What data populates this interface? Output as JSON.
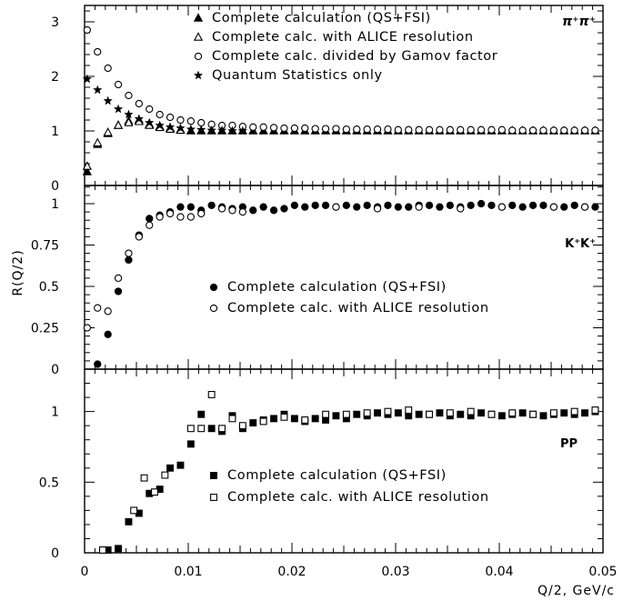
{
  "chart_data": {
    "type": "scatter",
    "xlabel": "Q/2, GeV/c",
    "ylabel": "R(Q/2)",
    "xlim": [
      0,
      0.05
    ],
    "x_ticks": [
      "0",
      "0.01",
      "0.02",
      "0.03",
      "0.04",
      "0.05"
    ],
    "x_tick_values": [
      0,
      0.01,
      0.02,
      0.03,
      0.04,
      0.05
    ],
    "panels": [
      {
        "label": "π⁺π⁺",
        "ylim": [
          0,
          3.3
        ],
        "y_ticks": [
          "0",
          "1",
          "2",
          "3"
        ],
        "y_tick_values": [
          0,
          1,
          2,
          3
        ],
        "legend_position": "top",
        "series": [
          {
            "name": "Complete calculation (QS+FSI)",
            "marker": "filled-triangle",
            "x": [
              0.00025,
              0.00125,
              0.00225,
              0.00325,
              0.00425,
              0.00525,
              0.00625,
              0.00725,
              0.00825,
              0.00925,
              0.01025,
              0.01125,
              0.01225,
              0.01325,
              0.01425,
              0.01525,
              0.01625,
              0.01725,
              0.01825,
              0.01925,
              0.02025,
              0.02125,
              0.02225,
              0.02325,
              0.02425,
              0.02525,
              0.02625,
              0.02725,
              0.02825,
              0.02925,
              0.03025,
              0.03125,
              0.03225,
              0.03325,
              0.03425,
              0.03525,
              0.03625,
              0.03725,
              0.03825,
              0.03925,
              0.04025,
              0.04125,
              0.04225,
              0.04325,
              0.04425,
              0.04525,
              0.04625,
              0.04725,
              0.04825,
              0.04925
            ],
            "y": [
              0.25,
              0.75,
              0.95,
              1.1,
              1.18,
              1.2,
              1.12,
              1.08,
              1.05,
              1.02,
              1.0,
              1.0,
              1.0,
              1.0,
              1.0,
              1.0,
              1.0,
              1.0,
              1.0,
              1.0,
              1.0,
              1.0,
              1.0,
              1.0,
              1.0,
              1.0,
              1.0,
              1.0,
              1.0,
              1.0,
              1.0,
              1.0,
              1.0,
              1.0,
              1.0,
              1.0,
              1.0,
              1.0,
              1.0,
              1.0,
              1.0,
              1.0,
              1.0,
              1.0,
              1.0,
              1.0,
              1.0,
              1.0,
              1.0,
              1.0
            ]
          },
          {
            "name": "Complete calc. with ALICE resolution",
            "marker": "open-triangle",
            "x": [
              0.00025,
              0.00125,
              0.00225,
              0.00325,
              0.00425,
              0.00525,
              0.00625,
              0.00725,
              0.00825,
              0.00925
            ],
            "y": [
              0.35,
              0.78,
              0.97,
              1.1,
              1.15,
              1.17,
              1.1,
              1.06,
              1.03,
              1.01
            ]
          },
          {
            "name": "Complete calc. divided by Gamov factor",
            "marker": "open-circle",
            "x": [
              0.00025,
              0.00125,
              0.00225,
              0.00325,
              0.00425,
              0.00525,
              0.00625,
              0.00725,
              0.00825,
              0.00925,
              0.01025,
              0.01125,
              0.01225,
              0.01325,
              0.01425,
              0.01525,
              0.01625,
              0.01725,
              0.01825,
              0.01925,
              0.02025,
              0.02125,
              0.02225,
              0.02325,
              0.02425,
              0.02525,
              0.02625,
              0.02725,
              0.02825,
              0.02925,
              0.03025,
              0.03125,
              0.03225,
              0.03325,
              0.03425,
              0.03525,
              0.03625,
              0.03725,
              0.03825,
              0.03925,
              0.04025,
              0.04125,
              0.04225,
              0.04325,
              0.04425,
              0.04525,
              0.04625,
              0.04725,
              0.04825,
              0.04925
            ],
            "y": [
              2.85,
              2.45,
              2.15,
              1.85,
              1.65,
              1.5,
              1.4,
              1.3,
              1.25,
              1.2,
              1.18,
              1.15,
              1.12,
              1.1,
              1.1,
              1.08,
              1.07,
              1.07,
              1.06,
              1.05,
              1.05,
              1.05,
              1.04,
              1.04,
              1.04,
              1.03,
              1.03,
              1.03,
              1.03,
              1.03,
              1.02,
              1.02,
              1.02,
              1.02,
              1.02,
              1.02,
              1.02,
              1.02,
              1.02,
              1.02,
              1.02,
              1.01,
              1.01,
              1.01,
              1.01,
              1.01,
              1.01,
              1.01,
              1.01,
              1.01
            ]
          },
          {
            "name": "Quantum Statistics only",
            "marker": "star",
            "x": [
              0.00025,
              0.00125,
              0.00225,
              0.00325,
              0.00425,
              0.00525,
              0.00625,
              0.00725,
              0.00825,
              0.00925,
              0.01025,
              0.01125,
              0.01225,
              0.01325,
              0.01425,
              0.01525
            ],
            "y": [
              1.95,
              1.75,
              1.55,
              1.4,
              1.3,
              1.22,
              1.15,
              1.1,
              1.07,
              1.05,
              1.03,
              1.02,
              1.01,
              1.01,
              1.0,
              1.0
            ]
          }
        ]
      },
      {
        "label": "K⁺K⁺",
        "ylim": [
          0,
          1.11
        ],
        "y_ticks": [
          "0",
          "0.25",
          "0.5",
          "0.75",
          "1"
        ],
        "y_tick_values": [
          0,
          0.25,
          0.5,
          0.75,
          1
        ],
        "legend_position": "center",
        "series": [
          {
            "name": "Complete calculation (QS+FSI)",
            "marker": "filled-circle",
            "x": [
              0.00125,
              0.00225,
              0.00325,
              0.00425,
              0.00525,
              0.00625,
              0.00725,
              0.00825,
              0.00925,
              0.01025,
              0.01125,
              0.01225,
              0.01325,
              0.01425,
              0.01525,
              0.01625,
              0.01725,
              0.01825,
              0.01925,
              0.02025,
              0.02125,
              0.02225,
              0.02325,
              0.02425,
              0.02525,
              0.02625,
              0.02725,
              0.02825,
              0.02925,
              0.03025,
              0.03125,
              0.03225,
              0.03325,
              0.03425,
              0.03525,
              0.03625,
              0.03725,
              0.03825,
              0.03925,
              0.04025,
              0.04125,
              0.04225,
              0.04325,
              0.04425,
              0.04525,
              0.04625,
              0.04725,
              0.04825,
              0.04925
            ],
            "y": [
              0.03,
              0.21,
              0.47,
              0.66,
              0.81,
              0.91,
              0.93,
              0.95,
              0.98,
              0.98,
              0.96,
              0.99,
              0.98,
              0.97,
              0.98,
              0.96,
              0.98,
              0.96,
              0.97,
              0.99,
              0.98,
              0.99,
              0.99,
              0.98,
              0.99,
              0.98,
              0.99,
              0.98,
              0.99,
              0.98,
              0.98,
              0.99,
              0.99,
              0.98,
              0.99,
              0.98,
              0.99,
              1.0,
              0.99,
              0.98,
              0.99,
              0.98,
              0.99,
              0.99,
              0.98,
              0.98,
              0.99,
              0.98,
              0.98
            ]
          },
          {
            "name": "Complete calc. with ALICE resolution",
            "marker": "open-circle",
            "x": [
              0.00025,
              0.00125,
              0.00225,
              0.00325,
              0.00425,
              0.00525,
              0.00625,
              0.00725,
              0.00825,
              0.00925,
              0.01025,
              0.01125,
              0.01325,
              0.01425,
              0.01525,
              0.02425,
              0.02825,
              0.03225,
              0.03625,
              0.04025,
              0.04525,
              0.04825
            ],
            "y": [
              0.25,
              0.37,
              0.35,
              0.55,
              0.7,
              0.8,
              0.87,
              0.92,
              0.94,
              0.92,
              0.92,
              0.94,
              0.97,
              0.96,
              0.95,
              0.98,
              0.97,
              0.98,
              0.97,
              0.98,
              0.98,
              0.98
            ]
          }
        ]
      },
      {
        "label": "PP",
        "ylim": [
          0,
          1.3
        ],
        "y_ticks": [
          "0",
          "0.5",
          "1"
        ],
        "y_tick_values": [
          0,
          0.5,
          1
        ],
        "legend_position": "bottom-right",
        "series": [
          {
            "name": "Complete calculation (QS+FSI)",
            "marker": "filled-square",
            "x": [
              0.00225,
              0.00325,
              0.00425,
              0.00525,
              0.00625,
              0.00725,
              0.00825,
              0.00925,
              0.01025,
              0.01125,
              0.01225,
              0.01325,
              0.01425,
              0.01525,
              0.01625,
              0.01725,
              0.01825,
              0.01925,
              0.02025,
              0.02125,
              0.02225,
              0.02325,
              0.02425,
              0.02525,
              0.02625,
              0.02725,
              0.02825,
              0.02925,
              0.03025,
              0.03125,
              0.03225,
              0.03325,
              0.03425,
              0.03525,
              0.03625,
              0.03725,
              0.03825,
              0.03925,
              0.04025,
              0.04125,
              0.04225,
              0.04325,
              0.04425,
              0.04525,
              0.04625,
              0.04725,
              0.04825,
              0.04925
            ],
            "y": [
              0.02,
              0.03,
              0.22,
              0.28,
              0.42,
              0.45,
              0.6,
              0.62,
              0.77,
              0.98,
              0.88,
              0.86,
              0.97,
              0.88,
              0.92,
              0.94,
              0.95,
              0.98,
              0.95,
              0.93,
              0.95,
              0.94,
              0.97,
              0.95,
              0.98,
              0.97,
              0.99,
              0.98,
              0.99,
              0.97,
              0.98,
              0.98,
              0.99,
              0.97,
              0.98,
              0.97,
              0.99,
              0.98,
              0.97,
              0.98,
              0.99,
              0.98,
              0.97,
              0.98,
              0.99,
              0.98,
              0.99,
              1.0
            ]
          },
          {
            "name": "Complete calc. with ALICE resolution",
            "marker": "open-square",
            "x": [
              0.00175,
              0.00475,
              0.00575,
              0.00675,
              0.00775,
              0.01025,
              0.01125,
              0.01225,
              0.01325,
              0.01425,
              0.01525,
              0.01725,
              0.01925,
              0.02125,
              0.02325,
              0.02525,
              0.02725,
              0.02925,
              0.03125,
              0.03325,
              0.03525,
              0.03725,
              0.03925,
              0.04125,
              0.04325,
              0.04525,
              0.04725,
              0.04925
            ],
            "y": [
              0.02,
              0.3,
              0.53,
              0.43,
              0.55,
              0.88,
              0.88,
              1.12,
              0.88,
              0.95,
              0.9,
              0.93,
              0.96,
              0.94,
              0.98,
              0.98,
              0.99,
              1.0,
              1.01,
              0.98,
              0.99,
              1.0,
              0.98,
              0.99,
              0.98,
              0.99,
              1.0,
              1.01
            ]
          }
        ]
      }
    ]
  }
}
